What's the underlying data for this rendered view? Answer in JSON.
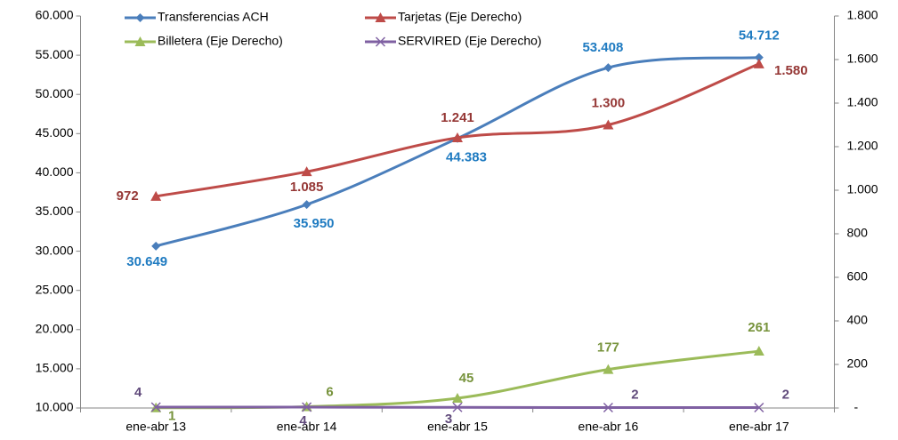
{
  "chart_data": {
    "type": "line",
    "categories": [
      "ene-abr 13",
      "ene-abr 14",
      "ene-abr 15",
      "ene-abr 16",
      "ene-abr 17"
    ],
    "ylim": [
      10000,
      60000
    ],
    "yticks": [
      {
        "value": 10000,
        "label": "10.000"
      },
      {
        "value": 15000,
        "label": "15.000"
      },
      {
        "value": 20000,
        "label": "20.000"
      },
      {
        "value": 25000,
        "label": "25.000"
      },
      {
        "value": 30000,
        "label": "30.000"
      },
      {
        "value": 35000,
        "label": "35.000"
      },
      {
        "value": 40000,
        "label": "40.000"
      },
      {
        "value": 45000,
        "label": "45.000"
      },
      {
        "value": 50000,
        "label": "50.000"
      },
      {
        "value": 55000,
        "label": "55.000"
      },
      {
        "value": 60000,
        "label": "60.000"
      }
    ],
    "y2lim": [
      0,
      1800
    ],
    "y2ticks": [
      {
        "value": 0,
        "label": "-"
      },
      200,
      400,
      600,
      800,
      {
        "value": 1000,
        "label": "1.000"
      },
      {
        "value": 1200,
        "label": "1.200"
      },
      {
        "value": 1400,
        "label": "1.400"
      },
      {
        "value": 1600,
        "label": "1.600"
      },
      {
        "value": 1800,
        "label": "1.800"
      }
    ],
    "series": [
      {
        "name": "Transferencias ACH",
        "color": "#4a7ebb",
        "marker": "diamond",
        "values": [
          30649,
          35950,
          44383,
          53408,
          54712
        ],
        "value_labels": [
          "30.649",
          "35.950",
          "44.383",
          "53.408",
          "54.712"
        ],
        "label_color": "#1f7bc1"
      },
      {
        "name": "Tarjetas (Eje Derecho)",
        "color": "#be4b48",
        "marker": "triangle",
        "axis": "y2",
        "values": [
          972,
          1085,
          1241,
          1300,
          1580
        ],
        "value_labels": [
          "972",
          "1.085",
          "1.241",
          "1.300",
          "1.580"
        ],
        "label_color": "#953735"
      },
      {
        "name": "Billetera (Eje Derecho)",
        "color": "#9bbb59",
        "marker": "triangle",
        "axis": "y2",
        "values": [
          1,
          6,
          45,
          177,
          261
        ],
        "label_color": "#77933c"
      },
      {
        "name": "SERVIRED (Eje Derecho)",
        "color": "#7f60a2",
        "marker": "x",
        "axis": "y2",
        "values": [
          4,
          4,
          3,
          2,
          2
        ],
        "label_color": "#604a7b"
      }
    ]
  }
}
